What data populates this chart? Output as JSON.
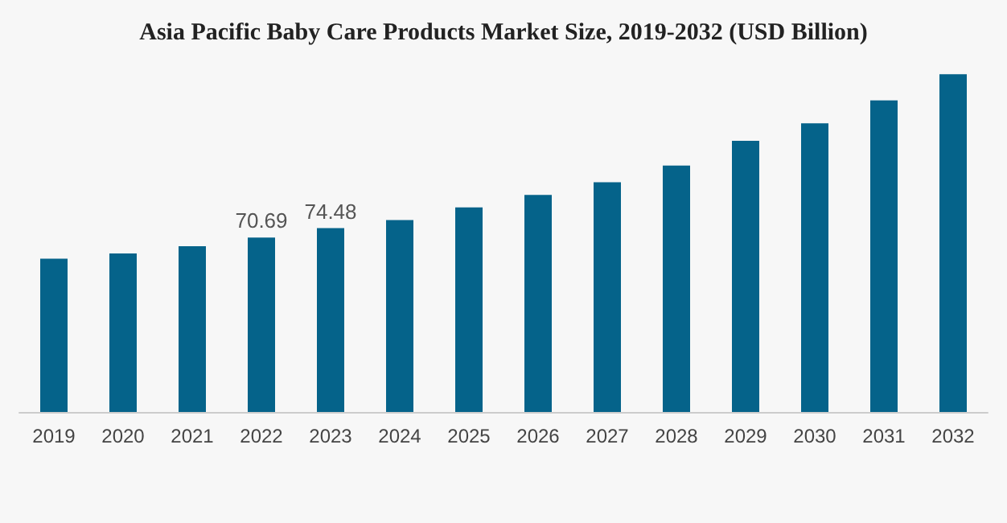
{
  "chart_data": {
    "type": "bar",
    "title": "Asia Pacific Baby Care Products Market Size, 2019-2032 (USD Billion)",
    "categories": [
      "2019",
      "2020",
      "2021",
      "2022",
      "2023",
      "2024",
      "2025",
      "2026",
      "2027",
      "2028",
      "2029",
      "2030",
      "2031",
      "2032"
    ],
    "values": [
      62.1,
      64.2,
      67.2,
      70.69,
      74.48,
      77.8,
      82.9,
      88.0,
      93.1,
      99.9,
      109.9,
      117.0,
      126.3,
      136.9
    ],
    "value_labels": [
      null,
      null,
      null,
      "70.69",
      "74.48",
      null,
      null,
      null,
      null,
      null,
      null,
      null,
      null,
      null
    ],
    "color": "#05638a"
  }
}
